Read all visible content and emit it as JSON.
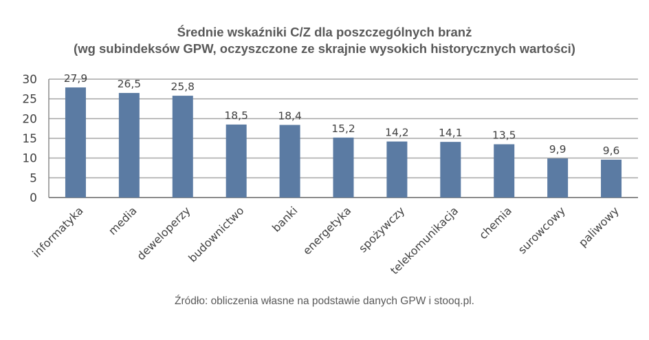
{
  "chart_data": {
    "type": "bar",
    "title": "Średnie wskaźniki C/Z dla poszczególnych branż",
    "subtitle": "(wg subindeksów GPW, oczyszczone ze skrajnie wysokich historycznych wartości)",
    "categories": [
      "informatyka",
      "media",
      "deweloperzy",
      "budownictwo",
      "banki",
      "energetyka",
      "spożywczy",
      "telekomunikacja",
      "chemia",
      "surowcowy",
      "paliwowy"
    ],
    "values": [
      27.9,
      26.5,
      25.8,
      18.5,
      18.4,
      15.2,
      14.2,
      14.1,
      13.5,
      9.9,
      9.6
    ],
    "value_labels": [
      "27,9",
      "26,5",
      "25,8",
      "18,5",
      "18,4",
      "15,2",
      "14,2",
      "14,1",
      "13,5",
      "9,9",
      "9,6"
    ],
    "xlabel": "",
    "ylabel": "",
    "ylim": [
      0,
      30
    ],
    "yticks": [
      0,
      5,
      10,
      15,
      20,
      25,
      30
    ],
    "grid": true,
    "legend": "none",
    "bar_color": "#5b7ba3",
    "source": "Źródło: obliczenia własne na podstawie danych GPW i stooq.pl."
  }
}
